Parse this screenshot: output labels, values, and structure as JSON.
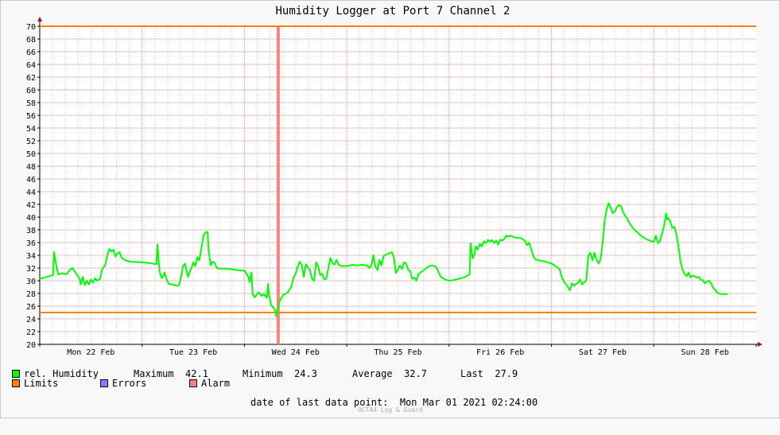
{
  "chart_data": {
    "type": "line",
    "title": "Humidity Logger at Port 7 Channel 2",
    "ylim": [
      20,
      70
    ],
    "yticks": [
      20,
      22,
      24,
      26,
      28,
      30,
      32,
      34,
      36,
      38,
      40,
      42,
      44,
      46,
      48,
      50,
      52,
      54,
      56,
      58,
      60,
      62,
      64,
      66,
      68,
      70
    ],
    "xlim": [
      0,
      7
    ],
    "xticks": [
      {
        "label": "Mon 22 Feb",
        "x": 0.5
      },
      {
        "label": "Tue 23 Feb",
        "x": 1.5
      },
      {
        "label": "Wed 24 Feb",
        "x": 2.5
      },
      {
        "label": "Thu 25 Feb",
        "x": 3.5
      },
      {
        "label": "Fri 26 Feb",
        "x": 4.5
      },
      {
        "label": "Sat 27 Feb",
        "x": 5.5
      },
      {
        "label": "Sun 28 Feb",
        "x": 6.5
      }
    ],
    "grid": true,
    "limits": {
      "upper": 70,
      "lower": 25
    },
    "alarm_x": 2.33,
    "series": [
      {
        "name": "rel. Humidity",
        "color": "#00ff00",
        "points": [
          [
            0,
            30.3
          ],
          [
            0.07,
            30.6
          ],
          [
            0.13,
            30.9
          ],
          [
            0.14,
            34.5
          ],
          [
            0.16,
            32.5
          ],
          [
            0.18,
            31
          ],
          [
            0.22,
            31.2
          ],
          [
            0.26,
            31
          ],
          [
            0.3,
            31.8
          ],
          [
            0.32,
            32
          ],
          [
            0.34,
            31.5
          ],
          [
            0.37,
            30.8
          ],
          [
            0.39,
            30.3
          ],
          [
            0.4,
            29.4
          ],
          [
            0.42,
            30.6
          ],
          [
            0.44,
            29.3
          ],
          [
            0.46,
            30
          ],
          [
            0.48,
            29.4
          ],
          [
            0.5,
            30.2
          ],
          [
            0.52,
            29.7
          ],
          [
            0.54,
            30.4
          ],
          [
            0.56,
            30
          ],
          [
            0.59,
            30.3
          ],
          [
            0.61,
            31.8
          ],
          [
            0.64,
            32.5
          ],
          [
            0.66,
            34
          ],
          [
            0.68,
            35
          ],
          [
            0.7,
            34.6
          ],
          [
            0.72,
            34.9
          ],
          [
            0.74,
            33.8
          ],
          [
            0.76,
            34.3
          ],
          [
            0.78,
            34.5
          ],
          [
            0.8,
            33.6
          ],
          [
            0.84,
            33.2
          ],
          [
            0.88,
            33
          ],
          [
            1.0,
            32.9
          ],
          [
            1.1,
            32.7
          ],
          [
            1.14,
            32.6
          ],
          [
            1.15,
            35.7
          ],
          [
            1.17,
            31.6
          ],
          [
            1.19,
            30.4
          ],
          [
            1.21,
            30.8
          ],
          [
            1.22,
            31.3
          ],
          [
            1.24,
            30.2
          ],
          [
            1.26,
            29.5
          ],
          [
            1.3,
            29.4
          ],
          [
            1.34,
            29.2
          ],
          [
            1.36,
            29.3
          ],
          [
            1.38,
            30.5
          ],
          [
            1.4,
            32.3
          ],
          [
            1.42,
            32.7
          ],
          [
            1.44,
            31.2
          ],
          [
            1.45,
            30.6
          ],
          [
            1.47,
            31.6
          ],
          [
            1.49,
            32.3
          ],
          [
            1.5,
            32.9
          ],
          [
            1.52,
            32.3
          ],
          [
            1.54,
            33.7
          ],
          [
            1.56,
            33.2
          ],
          [
            1.58,
            35.2
          ],
          [
            1.6,
            37.1
          ],
          [
            1.62,
            37.6
          ],
          [
            1.64,
            37.7
          ],
          [
            1.65,
            34.7
          ],
          [
            1.67,
            32.4
          ],
          [
            1.69,
            33
          ],
          [
            1.71,
            32.8
          ],
          [
            1.73,
            32
          ],
          [
            1.76,
            31.9
          ],
          [
            1.8,
            31.9
          ],
          [
            1.88,
            31.8
          ],
          [
            1.96,
            31.6
          ],
          [
            2.0,
            31.6
          ],
          [
            2.02,
            31.1
          ],
          [
            2.04,
            30.5
          ],
          [
            2.05,
            29.8
          ],
          [
            2.07,
            31.3
          ],
          [
            2.08,
            27.9
          ],
          [
            2.1,
            27.4
          ],
          [
            2.14,
            28.2
          ],
          [
            2.17,
            27.6
          ],
          [
            2.19,
            27.9
          ],
          [
            2.22,
            27.3
          ],
          [
            2.23,
            29.5
          ],
          [
            2.24,
            28
          ],
          [
            2.26,
            26.2
          ],
          [
            2.3,
            25.4
          ],
          [
            2.31,
            24.4
          ],
          [
            2.32,
            25.2
          ],
          [
            2.34,
            26.6
          ],
          [
            2.36,
            27.3
          ],
          [
            2.38,
            27.8
          ],
          [
            2.42,
            28.1
          ],
          [
            2.46,
            29.1
          ],
          [
            2.48,
            30.5
          ],
          [
            2.5,
            31.1
          ],
          [
            2.52,
            32.2
          ],
          [
            2.54,
            33
          ],
          [
            2.56,
            32.5
          ],
          [
            2.58,
            30.6
          ],
          [
            2.6,
            32.6
          ],
          [
            2.62,
            32.1
          ],
          [
            2.64,
            31.7
          ],
          [
            2.66,
            30.3
          ],
          [
            2.68,
            30
          ],
          [
            2.7,
            32.9
          ],
          [
            2.72,
            32.3
          ],
          [
            2.74,
            30.9
          ],
          [
            2.76,
            31.1
          ],
          [
            2.78,
            30.2
          ],
          [
            2.8,
            30.3
          ],
          [
            2.82,
            32
          ],
          [
            2.84,
            33.6
          ],
          [
            2.86,
            32.8
          ],
          [
            2.88,
            32.5
          ],
          [
            2.9,
            33.3
          ],
          [
            2.92,
            32.5
          ],
          [
            2.95,
            32.3
          ],
          [
            3.0,
            32.3
          ],
          [
            3.05,
            32.5
          ],
          [
            3.1,
            32.4
          ],
          [
            3.15,
            32.5
          ],
          [
            3.2,
            32.4
          ],
          [
            3.22,
            32
          ],
          [
            3.24,
            32.3
          ],
          [
            3.26,
            34
          ],
          [
            3.28,
            32.2
          ],
          [
            3.3,
            31.7
          ],
          [
            3.32,
            33.3
          ],
          [
            3.34,
            32.4
          ],
          [
            3.36,
            33.9
          ],
          [
            3.4,
            34.2
          ],
          [
            3.44,
            34.5
          ],
          [
            3.46,
            33.7
          ],
          [
            3.48,
            31.2
          ],
          [
            3.5,
            31.8
          ],
          [
            3.52,
            32.4
          ],
          [
            3.54,
            31.8
          ],
          [
            3.56,
            32.9
          ],
          [
            3.58,
            32.7
          ],
          [
            3.6,
            31.7
          ],
          [
            3.62,
            31.5
          ],
          [
            3.64,
            30.3
          ],
          [
            3.66,
            30.5
          ],
          [
            3.68,
            30
          ],
          [
            3.7,
            31
          ],
          [
            3.72,
            31.3
          ],
          [
            3.74,
            31.5
          ],
          [
            3.78,
            32
          ],
          [
            3.82,
            32.4
          ],
          [
            3.86,
            32.3
          ],
          [
            3.88,
            32
          ],
          [
            3.9,
            31.2
          ],
          [
            3.92,
            30.6
          ],
          [
            3.96,
            30.2
          ],
          [
            4.0,
            30
          ],
          [
            4.04,
            30.1
          ],
          [
            4.1,
            30.3
          ],
          [
            4.16,
            30.6
          ],
          [
            4.2,
            31
          ],
          [
            4.21,
            35.9
          ],
          [
            4.23,
            33.5
          ],
          [
            4.25,
            34.2
          ],
          [
            4.26,
            35.4
          ],
          [
            4.28,
            34.9
          ],
          [
            4.3,
            35.8
          ],
          [
            4.32,
            35.4
          ],
          [
            4.34,
            36.2
          ],
          [
            4.36,
            35.9
          ],
          [
            4.38,
            36.4
          ],
          [
            4.4,
            36.1
          ],
          [
            4.42,
            36.4
          ],
          [
            4.44,
            35.9
          ],
          [
            4.46,
            36.3
          ],
          [
            4.48,
            35.7
          ],
          [
            4.5,
            36.5
          ],
          [
            4.52,
            36.3
          ],
          [
            4.54,
            36.6
          ],
          [
            4.56,
            37.1
          ],
          [
            4.58,
            36.9
          ],
          [
            4.6,
            37.1
          ],
          [
            4.64,
            36.8
          ],
          [
            4.7,
            36.7
          ],
          [
            4.74,
            36.3
          ],
          [
            4.76,
            35.6
          ],
          [
            4.78,
            36
          ],
          [
            4.8,
            35.1
          ],
          [
            4.82,
            34
          ],
          [
            4.84,
            33.4
          ],
          [
            4.88,
            33.2
          ],
          [
            4.94,
            33
          ],
          [
            5.0,
            32.7
          ],
          [
            5.04,
            32.3
          ],
          [
            5.08,
            31.8
          ],
          [
            5.1,
            30.6
          ],
          [
            5.12,
            29.9
          ],
          [
            5.14,
            29.5
          ],
          [
            5.16,
            29
          ],
          [
            5.18,
            28.5
          ],
          [
            5.2,
            29.6
          ],
          [
            5.22,
            29.2
          ],
          [
            5.24,
            29.5
          ],
          [
            5.26,
            29.7
          ],
          [
            5.28,
            30.2
          ],
          [
            5.3,
            29.4
          ],
          [
            5.32,
            29.8
          ],
          [
            5.34,
            30
          ],
          [
            5.36,
            33.9
          ],
          [
            5.38,
            34.4
          ],
          [
            5.4,
            33.2
          ],
          [
            5.42,
            34.4
          ],
          [
            5.44,
            33.4
          ],
          [
            5.46,
            32.7
          ],
          [
            5.48,
            33.4
          ],
          [
            5.5,
            35.9
          ],
          [
            5.52,
            39.5
          ],
          [
            5.54,
            41.3
          ],
          [
            5.56,
            42.2
          ],
          [
            5.58,
            41.4
          ],
          [
            5.6,
            40.6
          ],
          [
            5.62,
            40.9
          ],
          [
            5.64,
            41.6
          ],
          [
            5.66,
            41.9
          ],
          [
            5.68,
            41.7
          ],
          [
            5.7,
            40.8
          ],
          [
            5.72,
            40.2
          ],
          [
            5.74,
            39.8
          ],
          [
            5.76,
            39.1
          ],
          [
            5.8,
            38.2
          ],
          [
            5.84,
            37.6
          ],
          [
            5.88,
            37
          ],
          [
            5.92,
            36.6
          ],
          [
            5.96,
            36.3
          ],
          [
            6.0,
            36.1
          ],
          [
            6.02,
            37.1
          ],
          [
            6.04,
            35.9
          ],
          [
            6.06,
            36.2
          ],
          [
            6.08,
            37.4
          ],
          [
            6.1,
            38.6
          ],
          [
            6.12,
            40.6
          ],
          [
            6.13,
            39.6
          ],
          [
            6.14,
            39.9
          ],
          [
            6.16,
            39.4
          ],
          [
            6.18,
            38.3
          ],
          [
            6.2,
            38.5
          ],
          [
            6.22,
            37.4
          ],
          [
            6.24,
            35.5
          ],
          [
            6.26,
            33.1
          ],
          [
            6.28,
            31.8
          ],
          [
            6.3,
            31.1
          ],
          [
            6.32,
            30.7
          ],
          [
            6.34,
            31.3
          ],
          [
            6.36,
            30.5
          ],
          [
            6.38,
            30.8
          ],
          [
            6.4,
            30.7
          ],
          [
            6.42,
            30.5
          ],
          [
            6.44,
            30.6
          ],
          [
            6.46,
            30.1
          ],
          [
            6.48,
            30.1
          ],
          [
            6.5,
            29.6
          ],
          [
            6.52,
            29.9
          ],
          [
            6.54,
            30
          ],
          [
            6.56,
            29.6
          ],
          [
            6.58,
            28.9
          ],
          [
            6.6,
            28.6
          ],
          [
            6.62,
            28.1
          ],
          [
            6.66,
            27.9
          ],
          [
            6.7,
            27.9
          ],
          [
            6.72,
            27.9
          ]
        ]
      }
    ]
  },
  "legend": {
    "series_label": "rel. Humidity",
    "maximum_label": "Maximum",
    "maximum_value": "42.1",
    "minimum_label": "Minimum",
    "minimum_value": "24.3",
    "average_label": "Average",
    "average_value": "32.7",
    "last_label": "Last",
    "last_value": "27.9",
    "limits_label": "Limits",
    "errors_label": "Errors",
    "alarm_label": "Alarm",
    "colors": {
      "humidity": "#00ff00",
      "limits": "#ff7f00",
      "errors": "#7f7fff",
      "alarm": "#ff7f7f"
    }
  },
  "footer": {
    "last_point_label": "date of last data point:",
    "last_point_value": "Mon Mar 01 2021 02:24:00",
    "credit": "OCTA4 Log & Guard"
  }
}
